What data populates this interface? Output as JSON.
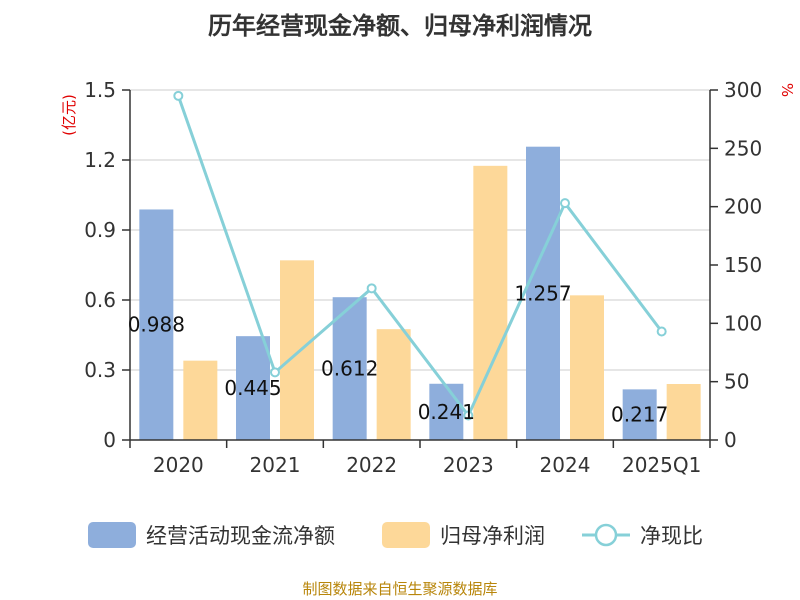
{
  "chart_data": {
    "type": "bar",
    "title": "历年经营现金净额、归母净利润情况",
    "categories": [
      "2020",
      "2021",
      "2022",
      "2023",
      "2024",
      "2025Q1"
    ],
    "y_left": {
      "unit": "(亿元)",
      "min": 0,
      "max": 1.5,
      "ticks": [
        "0",
        "0.3",
        "0.6",
        "0.9",
        "1.2",
        "1.5"
      ]
    },
    "y_right": {
      "unit": "%",
      "min": 0,
      "max": 300,
      "ticks": [
        "0",
        "50",
        "100",
        "150",
        "200",
        "250",
        "300"
      ]
    },
    "series": [
      {
        "name": "经营活动现金流净额",
        "type": "bar",
        "axis": "left",
        "color": "#8eaedc",
        "values": [
          0.988,
          0.445,
          0.612,
          0.241,
          1.257,
          0.217
        ],
        "labels": [
          "0.988",
          "0.445",
          "0.612",
          "0.241",
          "1.257",
          "0.217"
        ]
      },
      {
        "name": "归母净利润",
        "type": "bar",
        "axis": "left",
        "color": "#fdd899",
        "values": [
          0.34,
          0.77,
          0.475,
          1.175,
          0.62,
          0.24
        ]
      },
      {
        "name": "净现比",
        "type": "line",
        "axis": "right",
        "color": "#86d0d8",
        "values": [
          295,
          58,
          130,
          21,
          203,
          93
        ]
      }
    ],
    "grid": true,
    "legend_position": "bottom"
  },
  "footer": {
    "source": "制图数据来自恒生聚源数据库"
  }
}
